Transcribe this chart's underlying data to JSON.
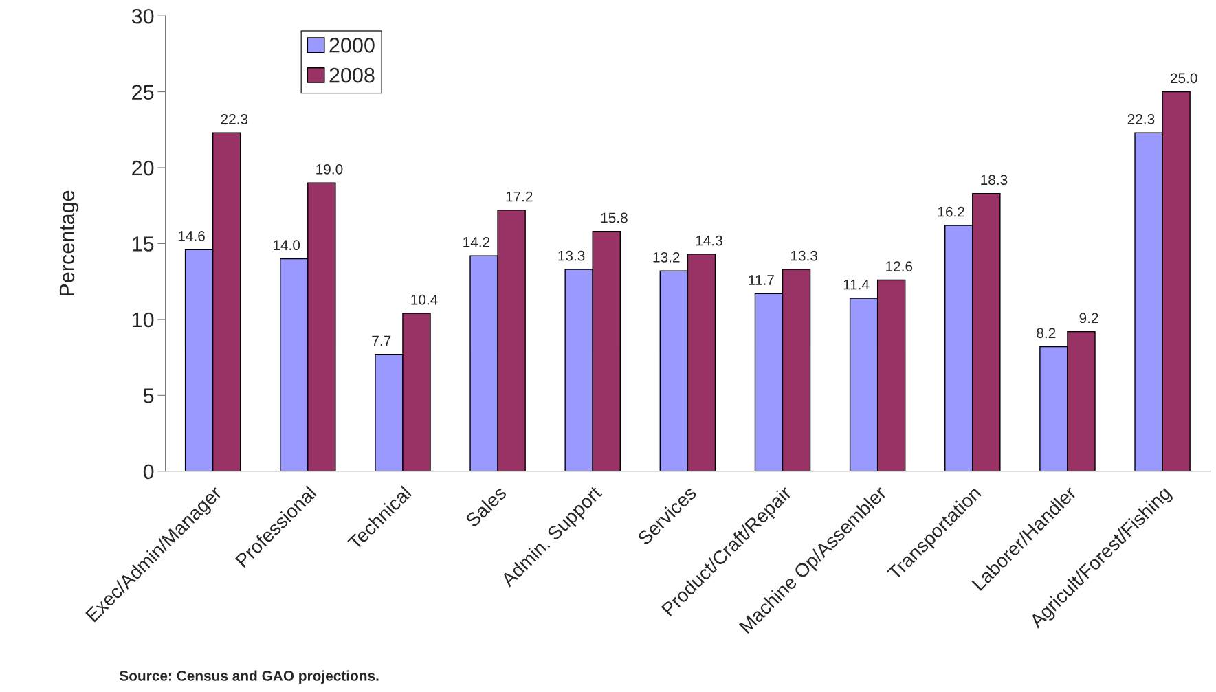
{
  "chart_data": {
    "type": "bar",
    "ylabel": "Percentage",
    "categories": [
      "Exec/Admin/Manager",
      "Professional",
      "Technical",
      "Sales",
      "Admin. Support",
      "Services",
      "Product/Craft/Repair",
      "Machine Op/Assembler",
      "Transportation",
      "Laborer/Handler",
      "Agricult/Forest/Fishing"
    ],
    "series": [
      {
        "name": "2000",
        "color": "#9999ff",
        "values": [
          14.6,
          14.0,
          7.7,
          14.2,
          13.3,
          13.2,
          11.7,
          11.4,
          16.2,
          8.2,
          22.3
        ],
        "value_labels": [
          "14.6",
          "14.0",
          "7.7",
          "14.2",
          "13.3",
          "13.2",
          "11.7",
          "11.4",
          "16.2",
          "8.2",
          "22.3"
        ]
      },
      {
        "name": "2008",
        "color": "#993366",
        "values": [
          22.3,
          19.0,
          10.4,
          17.2,
          15.8,
          14.3,
          13.3,
          12.6,
          18.3,
          9.2,
          25.0
        ],
        "value_labels": [
          "22.3",
          "19.0",
          "10.4",
          "17.2",
          "15.8",
          "14.3",
          "13.3",
          "12.6",
          "18.3",
          "9.2",
          "25.0"
        ]
      }
    ],
    "ylim": [
      0,
      30
    ],
    "yticks": [
      0,
      5,
      10,
      15,
      20,
      25,
      30
    ],
    "grid": false,
    "legend": "top left",
    "annotations": [
      "Source: Census and GAO projections."
    ]
  }
}
